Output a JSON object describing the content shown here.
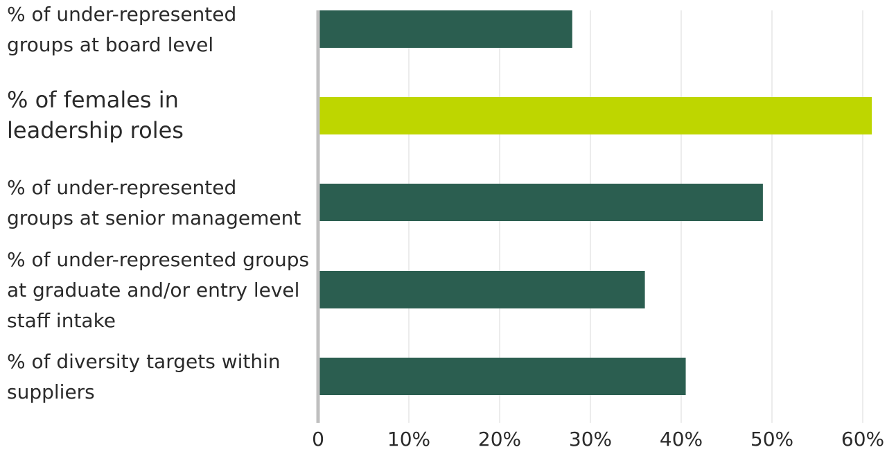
{
  "chart_data": {
    "type": "bar",
    "orientation": "horizontal",
    "categories": [
      [
        "% of under-represented",
        "groups at board level"
      ],
      [
        "% of females in",
        "leadership roles"
      ],
      [
        "% of under-represented",
        "groups at senior management"
      ],
      [
        "% of under-represented groups",
        "at graduate and/or entry level",
        "staff intake"
      ],
      [
        "% of diversity targets within",
        "suppliers"
      ]
    ],
    "values": [
      28,
      61,
      49,
      36,
      40.5
    ],
    "highlight_index": 1,
    "xlim": [
      0,
      61
    ],
    "x_ticks": [
      0,
      10,
      20,
      30,
      40,
      50,
      60
    ],
    "x_tick_labels": [
      "0",
      "10%",
      "20%",
      "30%",
      "40%",
      "50%",
      "60%"
    ],
    "grid": "vertical",
    "title": "",
    "xlabel": "",
    "ylabel": "",
    "colors": {
      "bar": "#2b5e50",
      "highlight_bar": "#bed600",
      "highlight_label": "#bed600",
      "label": "#2a2a2a",
      "grid": "#d9d9d9",
      "axis": "#bfbfbf"
    }
  }
}
